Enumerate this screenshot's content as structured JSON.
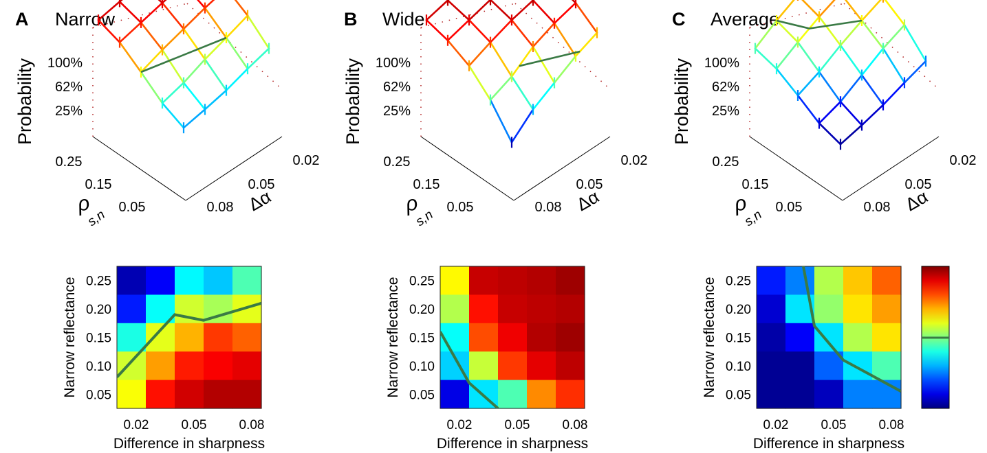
{
  "panels": [
    {
      "letter": "A",
      "title": "Narrow"
    },
    {
      "letter": "B",
      "title": "Wide"
    },
    {
      "letter": "C",
      "title": "Average"
    }
  ],
  "surface_axes": {
    "z_label": "Probability",
    "z_ticks": [
      "100%",
      "62%",
      "25%"
    ],
    "rho_ticks": [
      "0.25",
      "0.15",
      "0.05"
    ],
    "rho_label_main": "ρ",
    "rho_label_sub": "s,n",
    "alpha_ticks": [
      "0.02",
      "0.05",
      "0.08"
    ],
    "alpha_label": "Δα"
  },
  "heatmap_axes": {
    "ylabel": "Narrow reflectance",
    "xlabel": "Difference in sharpness",
    "yticks": [
      "0.25",
      "0.20",
      "0.15",
      "0.10",
      "0.05"
    ],
    "xticks": [
      "0.02",
      "0.05",
      "0.08"
    ]
  },
  "colors": {
    "contour": "#3a7a45",
    "grid_dots": "#b22222"
  },
  "chart_data": [
    {
      "type": "heatmap",
      "panel": "A",
      "title": "Narrow",
      "rows_y": [
        0.25,
        0.2,
        0.15,
        0.1,
        0.05
      ],
      "cols_x": [
        0.01,
        0.025,
        0.04,
        0.055,
        0.07,
        0.085
      ],
      "values": [
        [
          0.05,
          0.12,
          0.37,
          0.32,
          0.45
        ],
        [
          0.15,
          0.38,
          0.58,
          0.54,
          0.6
        ],
        [
          0.4,
          0.6,
          0.7,
          0.82,
          0.78
        ],
        [
          0.58,
          0.72,
          0.85,
          0.88,
          0.9
        ],
        [
          0.62,
          0.86,
          0.92,
          0.95,
          0.95
        ]
      ],
      "contour_62pct": {
        "x": [
          0.01,
          0.04,
          0.055,
          0.085
        ],
        "y": [
          0.08,
          0.19,
          0.18,
          0.21
        ]
      }
    },
    {
      "type": "heatmap",
      "panel": "B",
      "title": "Wide",
      "rows_y": [
        0.25,
        0.2,
        0.15,
        0.1,
        0.05
      ],
      "cols_x": [
        0.01,
        0.025,
        0.04,
        0.055,
        0.07,
        0.085
      ],
      "values": [
        [
          0.63,
          0.93,
          0.94,
          0.95,
          0.97
        ],
        [
          0.55,
          0.86,
          0.93,
          0.94,
          0.95
        ],
        [
          0.38,
          0.8,
          0.89,
          0.95,
          0.97
        ],
        [
          0.33,
          0.57,
          0.82,
          0.9,
          0.94
        ],
        [
          0.1,
          0.35,
          0.45,
          0.74,
          0.83
        ]
      ],
      "contour_62pct": {
        "x": [
          0.01,
          0.025,
          0.04
        ],
        "y": [
          0.16,
          0.07,
          0.025
        ]
      }
    },
    {
      "type": "heatmap",
      "panel": "C",
      "title": "Average",
      "rows_y": [
        0.25,
        0.2,
        0.15,
        0.1,
        0.05
      ],
      "cols_x": [
        0.01,
        0.025,
        0.04,
        0.055,
        0.07,
        0.085
      ],
      "values": [
        [
          0.15,
          0.25,
          0.55,
          0.68,
          0.78
        ],
        [
          0.08,
          0.35,
          0.52,
          0.65,
          0.72
        ],
        [
          0.04,
          0.12,
          0.35,
          0.55,
          0.65
        ],
        [
          0.02,
          0.02,
          0.22,
          0.35,
          0.45
        ],
        [
          0.02,
          0.02,
          0.06,
          0.25,
          0.25
        ]
      ],
      "contour_62pct": {
        "x": [
          0.034,
          0.04,
          0.055,
          0.085
        ],
        "y": [
          0.28,
          0.17,
          0.11,
          0.055
        ]
      }
    },
    {
      "type": "line",
      "panel": "A",
      "surface": "3d",
      "rho": [
        0.05,
        0.1,
        0.15,
        0.2,
        0.25
      ],
      "alpha": [
        0.02,
        0.035,
        0.05,
        0.065,
        0.08
      ],
      "probability": [
        [
          0.28,
          0.4,
          0.62,
          0.82,
          0.9
        ],
        [
          0.3,
          0.45,
          0.7,
          0.86,
          0.92
        ],
        [
          0.33,
          0.55,
          0.76,
          0.9,
          0.94
        ],
        [
          0.4,
          0.62,
          0.82,
          0.93,
          0.95
        ],
        [
          0.45,
          0.7,
          0.86,
          0.95,
          0.97
        ]
      ]
    },
    {
      "type": "line",
      "panel": "B",
      "surface": "3d",
      "rho": [
        0.05,
        0.1,
        0.15,
        0.2,
        0.25
      ],
      "alpha": [
        0.02,
        0.035,
        0.05,
        0.065,
        0.08
      ],
      "probability": [
        [
          0.05,
          0.45,
          0.72,
          0.85,
          0.9
        ],
        [
          0.3,
          0.55,
          0.82,
          0.9,
          0.94
        ],
        [
          0.45,
          0.75,
          0.9,
          0.95,
          0.97
        ],
        [
          0.6,
          0.85,
          0.94,
          0.97,
          0.98
        ],
        [
          0.7,
          0.9,
          0.96,
          0.98,
          0.99
        ]
      ]
    },
    {
      "type": "line",
      "panel": "C",
      "surface": "3d",
      "rho": [
        0.05,
        0.1,
        0.15,
        0.2,
        0.25
      ],
      "alpha": [
        0.02,
        0.035,
        0.05,
        0.065,
        0.08
      ],
      "probability": [
        [
          0.02,
          0.08,
          0.25,
          0.4,
          0.45
        ],
        [
          0.05,
          0.15,
          0.35,
          0.55,
          0.62
        ],
        [
          0.1,
          0.3,
          0.5,
          0.68,
          0.75
        ],
        [
          0.18,
          0.45,
          0.62,
          0.78,
          0.85
        ],
        [
          0.25,
          0.55,
          0.72,
          0.85,
          0.92
        ]
      ]
    }
  ]
}
